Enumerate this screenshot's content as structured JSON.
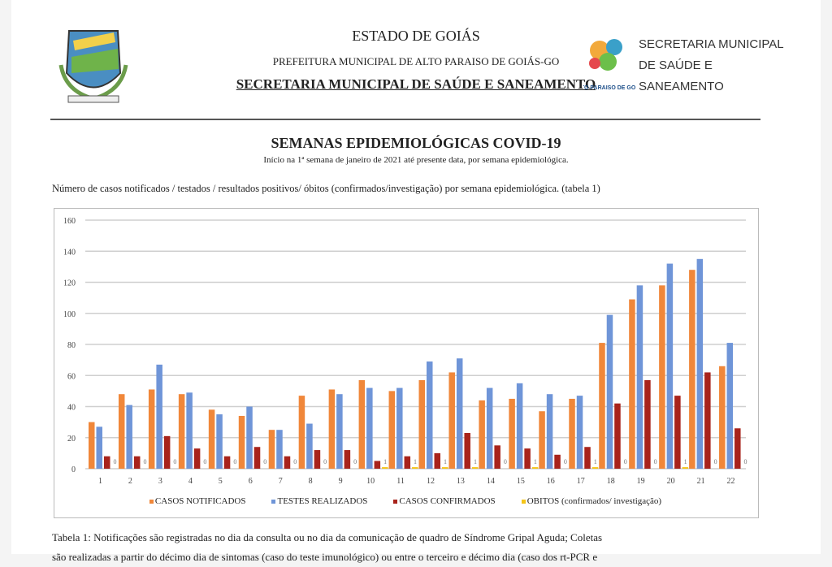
{
  "header": {
    "state": "ESTADO DE GOIÁS",
    "prefecture": "PREFEITURA MUNICIPAL DE ALTO PARAISO DE GOIÁS-GO",
    "secretariat": "SECRETARIA MUNICIPAL DE SAÚDE E SANEAMENTO",
    "logo_right_text": [
      "SECRETARIA MUNICIPAL",
      "DE SAÚDE E",
      "SANEAMENTO"
    ],
    "logo_right_small": "ALTO PARAISO DE GOIÁS"
  },
  "document": {
    "title": "SEMANAS EPIDEMIOLÓGICAS COVID-19",
    "subtitle": "Início na 1ª semana de janeiro de 2021 até presente data, por semana epidemiológica.",
    "description": "Número de casos notificados / testados / resultados positivos/ óbitos (confirmados/investigação) por semana epidemiológica. (tabela 1)",
    "caption_line1": "Tabela 1: Notificações são registradas no dia da consulta ou no dia da comunicação de quadro de Síndrome Gripal Aguda; Coletas",
    "caption_line2": "são realizadas a partir do décimo dia de sintomas (caso do teste imunológico) ou entre o terceiro e décimo dia (caso dos rt-PCR e"
  },
  "chart_data": {
    "type": "bar",
    "categories": [
      "1",
      "2",
      "3",
      "4",
      "5",
      "6",
      "7",
      "8",
      "9",
      "10",
      "11",
      "12",
      "13",
      "14",
      "15",
      "16",
      "17",
      "18",
      "19",
      "20",
      "21",
      "22"
    ],
    "ylim": [
      0,
      160
    ],
    "yticks": [
      0,
      20,
      40,
      60,
      80,
      100,
      120,
      140,
      160
    ],
    "grid": true,
    "legend_position": "bottom",
    "series": [
      {
        "name": "CASOS NOTIFICADOS",
        "color": "#f0873a",
        "values": [
          30,
          48,
          51,
          48,
          38,
          34,
          25,
          47,
          51,
          57,
          50,
          57,
          62,
          44,
          45,
          37,
          45,
          81,
          109,
          118,
          128,
          66
        ]
      },
      {
        "name": "TESTES REALIZADOS",
        "color": "#6f95d8",
        "values": [
          27,
          41,
          67,
          49,
          35,
          40,
          25,
          29,
          48,
          52,
          52,
          69,
          71,
          52,
          55,
          48,
          47,
          99,
          118,
          132,
          135,
          81
        ]
      },
      {
        "name": "CASOS CONFIRMADOS",
        "color": "#a8231b",
        "values": [
          8,
          8,
          21,
          13,
          8,
          14,
          8,
          12,
          12,
          5,
          8,
          10,
          23,
          15,
          13,
          9,
          14,
          42,
          57,
          47,
          62,
          26
        ]
      },
      {
        "name": "OBITOS (confirmados/ investigação)",
        "color": "#f5c518",
        "values": [
          0,
          0,
          0,
          0,
          0,
          0,
          0,
          0,
          0,
          1,
          1,
          1,
          1,
          0,
          1,
          0,
          1,
          0,
          0,
          1,
          0,
          0
        ],
        "show_labels": true
      }
    ]
  }
}
